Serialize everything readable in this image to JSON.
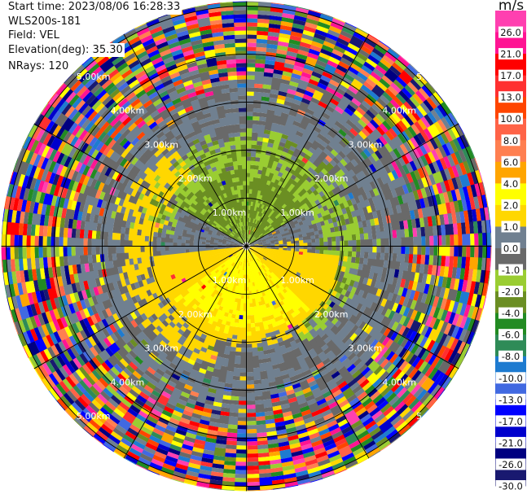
{
  "header": {
    "start_time": "Start time: 2023/08/06 16:28:33",
    "instrument": "WLS200s-181",
    "field": "Field: VEL",
    "elevation": "Elevation(deg): 35.30",
    "nrays": "NRays: 120"
  },
  "chart_data": {
    "type": "heatmap",
    "projection": "polar-ppi",
    "field": "VEL",
    "units": "m/s",
    "n_rays": 120,
    "range_rings_km": [
      1,
      2,
      3,
      4,
      5
    ],
    "ring_labels": [
      "1.00km",
      "2.00km",
      "3.00km",
      "4.00km",
      "5.00km"
    ],
    "radial_spokes_deg": 30,
    "max_range_km": 5.1,
    "pattern": {
      "north": "negative velocities (-1 to -4 m/s) within ~2.3 km",
      "south": "positive velocities (1 to 4 m/s) within ~2.5 km",
      "beyond_3.5km": "noisy, all colors"
    },
    "colorbar": {
      "label": "m/s",
      "ticks": [
        "26.0",
        "21.0",
        "17.0",
        "13.0",
        "10.0",
        "8.0",
        "6.0",
        "4.0",
        "2.0",
        "1.0",
        "0.0",
        "-1.0",
        "-2.0",
        "-4.0",
        "-6.0",
        "-8.0",
        "-10.0",
        "-13.0",
        "-17.0",
        "-21.0",
        "-26.0",
        "-30.0"
      ],
      "colors": [
        "#ff40b0",
        "#ff1493",
        "#ff0000",
        "#ff3030",
        "#ff4500",
        "#ff6347",
        "#ff7f50",
        "#ffa500",
        "#ffff00",
        "#ffd700",
        "#708090",
        "#696969",
        "#9acd32",
        "#6b8e23",
        "#228b22",
        "#2e8b57",
        "#1e7bd0",
        "#4169e1",
        "#0000ff",
        "#0000cd",
        "#000080",
        "#191970"
      ]
    }
  }
}
